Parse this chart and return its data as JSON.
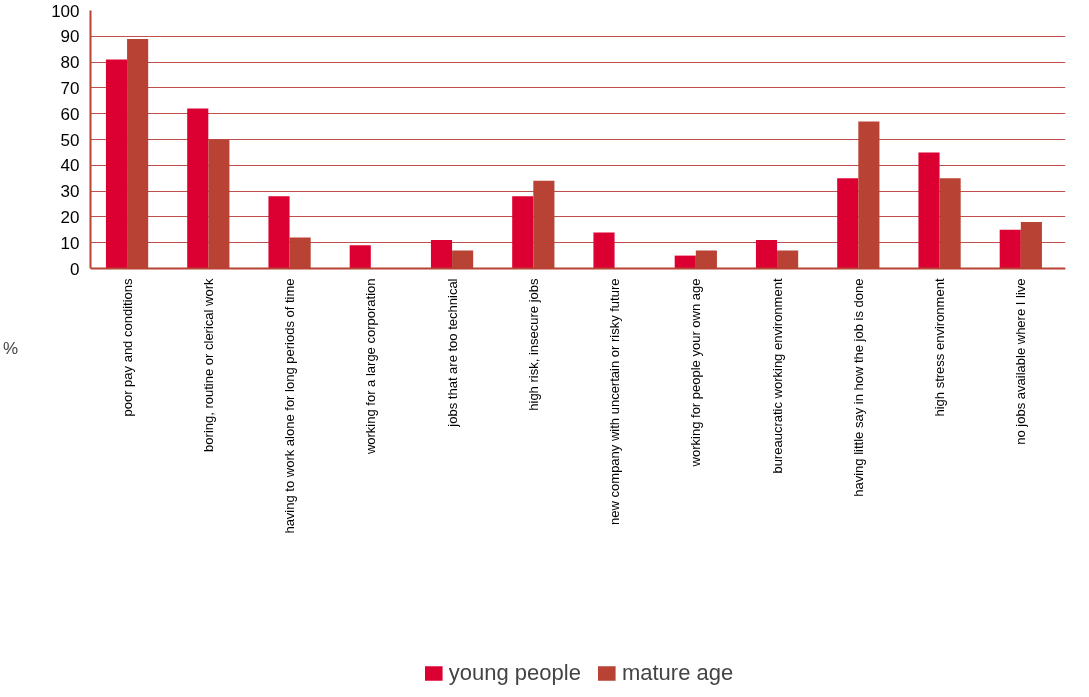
{
  "chart_data": {
    "type": "bar",
    "ylabel": "%",
    "categories": [
      "poor pay and conditions",
      "boring, routine or clerical work",
      "having to work alone for long periods of time",
      "working for a large corporation",
      "jobs that are too technical",
      "high risk, insecure jobs",
      "new company with uncertain or risky future",
      "working for people your own age",
      "bureaucratic working environment",
      "having little say in how the job is done",
      "high stress environment",
      "no jobs available where I live"
    ],
    "series": [
      {
        "name": "young people",
        "color": "#dc0032",
        "values": [
          81,
          62,
          28,
          9,
          11,
          28,
          14,
          5,
          11,
          35,
          45,
          15
        ]
      },
      {
        "name": "mature age",
        "color": "#b84233",
        "values": [
          89,
          50,
          12,
          0,
          7,
          34,
          0,
          7,
          7,
          57,
          35,
          18
        ]
      }
    ],
    "ylim": [
      0,
      100
    ],
    "yticks": [
      0,
      10,
      20,
      30,
      40,
      50,
      60,
      70,
      80,
      90,
      100
    ],
    "grid": "y",
    "legend": "bottom"
  }
}
